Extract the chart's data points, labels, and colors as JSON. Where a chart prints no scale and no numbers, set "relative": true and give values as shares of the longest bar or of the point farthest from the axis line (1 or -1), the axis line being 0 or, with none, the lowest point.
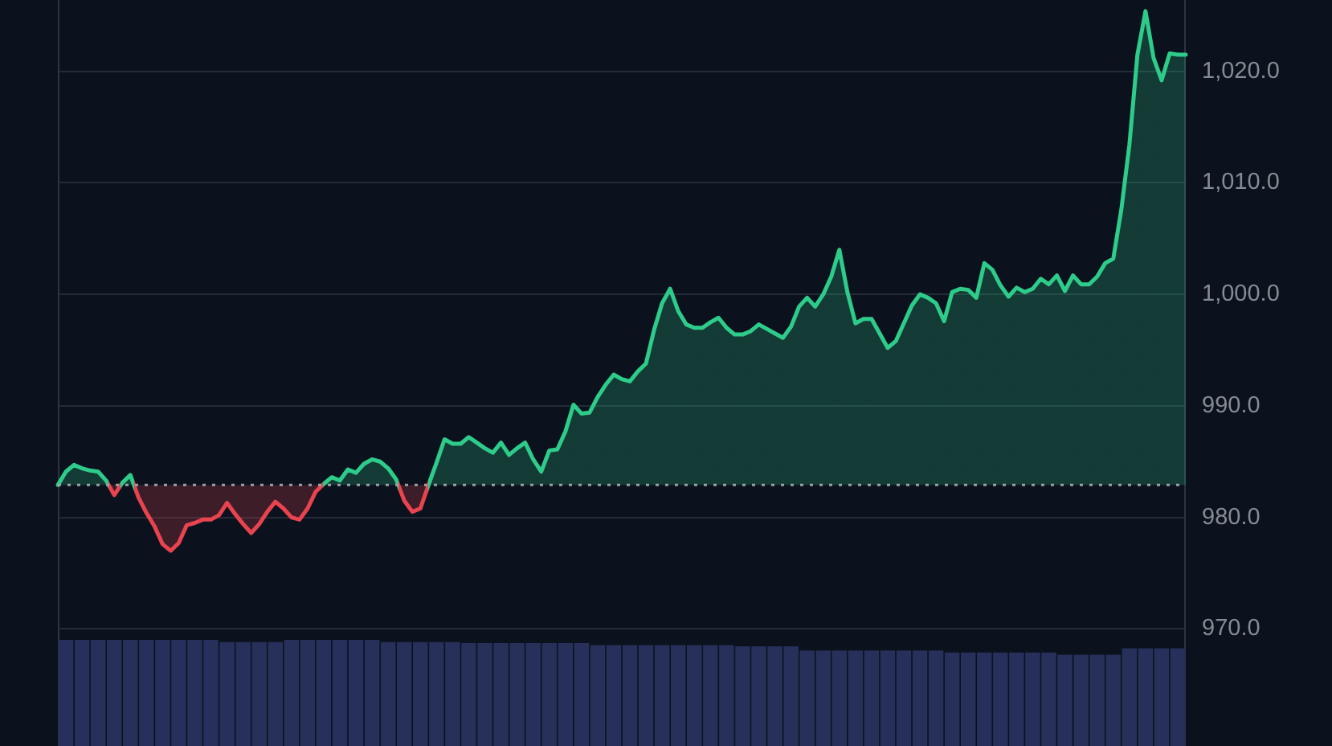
{
  "chart_data": [
    {
      "type": "area",
      "categories": [
        null,
        null,
        null,
        null,
        null,
        null,
        null,
        null,
        null,
        null,
        null,
        null,
        null,
        null,
        null,
        null,
        null,
        null,
        null,
        null,
        null,
        null,
        null,
        null,
        null,
        null,
        null,
        null,
        null,
        null,
        null,
        null,
        null,
        null,
        null,
        null,
        null,
        null,
        null,
        null,
        null,
        null,
        null,
        null,
        null,
        null,
        null,
        null,
        null,
        null,
        null,
        null,
        null,
        null,
        null,
        null,
        null,
        null,
        null,
        null,
        null,
        null,
        null,
        null,
        null,
        null,
        null,
        null,
        null,
        null,
        null,
        null,
        null,
        null,
        null,
        null,
        null,
        null,
        null,
        null,
        null,
        null,
        null,
        null,
        null,
        null,
        null,
        null,
        null,
        null,
        null,
        null,
        null,
        null,
        null,
        null,
        null,
        null,
        null,
        null,
        null,
        null,
        null,
        null,
        null,
        null,
        null,
        null,
        null,
        null,
        null,
        null,
        null,
        null,
        null,
        null,
        null,
        null,
        null,
        null,
        null,
        null,
        null,
        null,
        null,
        null,
        null,
        null,
        null,
        null,
        null,
        null,
        null,
        null,
        null,
        null,
        null,
        null,
        null,
        null,
        null
      ],
      "series": [
        {
          "colors": [
            "#2ecc8a",
            "#2ecc8a",
            "#2ecc8a",
            "#2ecc8a",
            "#2ecc8a",
            "#2ecc8a",
            "#2ecc8a",
            "#e8434f",
            "#2ecc8a",
            "#2ecc8a",
            "#e8434f",
            "#e8434f",
            "#e8434f",
            "#e8434f",
            "#e8434f",
            "#e8434f",
            "#e8434f",
            "#e8434f",
            "#e8434f",
            "#e8434f",
            "#e8434f",
            "#e8434f",
            "#e8434f",
            "#e8434f",
            "#e8434f",
            "#e8434f",
            "#e8434f",
            "#e8434f",
            "#e8434f",
            "#e8434f",
            "#e8434f",
            "#e8434f",
            "#e8434f",
            "#2ecc8a",
            "#2ecc8a",
            "#2ecc8a",
            "#2ecc8a",
            "#2ecc8a",
            "#2ecc8a",
            "#2ecc8a",
            "#2ecc8a",
            "#2ecc8a",
            "#2ecc8a",
            "#e8434f",
            "#e8434f",
            "#e8434f",
            "#2ecc8a",
            "#2ecc8a",
            "#2ecc8a",
            "#2ecc8a",
            "#2ecc8a",
            "#2ecc8a",
            "#2ecc8a",
            "#2ecc8a",
            "#2ecc8a",
            "#2ecc8a",
            "#2ecc8a",
            "#2ecc8a",
            "#2ecc8a",
            "#2ecc8a",
            "#2ecc8a",
            "#2ecc8a",
            "#2ecc8a",
            "#2ecc8a",
            "#2ecc8a",
            "#2ecc8a",
            "#2ecc8a",
            "#2ecc8a",
            "#2ecc8a",
            "#2ecc8a",
            "#2ecc8a",
            "#2ecc8a",
            "#2ecc8a",
            "#2ecc8a",
            "#2ecc8a",
            "#2ecc8a",
            "#2ecc8a",
            "#2ecc8a",
            "#2ecc8a",
            "#2ecc8a",
            "#2ecc8a",
            "#2ecc8a",
            "#2ecc8a",
            "#2ecc8a",
            "#2ecc8a",
            "#2ecc8a",
            "#2ecc8a",
            "#2ecc8a",
            "#2ecc8a",
            "#2ecc8a",
            "#2ecc8a",
            "#2ecc8a",
            "#2ecc8a",
            "#2ecc8a",
            "#2ecc8a",
            "#2ecc8a",
            "#2ecc8a",
            "#2ecc8a",
            "#2ecc8a",
            "#2ecc8a",
            "#2ecc8a",
            "#2ecc8a",
            "#2ecc8a",
            "#2ecc8a",
            "#2ecc8a",
            "#2ecc8a",
            "#2ecc8a",
            "#2ecc8a",
            "#2ecc8a",
            "#2ecc8a",
            "#2ecc8a",
            "#2ecc8a",
            "#2ecc8a",
            "#2ecc8a",
            "#2ecc8a",
            "#2ecc8a",
            "#2ecc8a",
            "#2ecc8a",
            "#2ecc8a",
            "#2ecc8a",
            "#2ecc8a",
            "#2ecc8a",
            "#2ecc8a",
            "#2ecc8a",
            "#2ecc8a",
            "#2ecc8a",
            "#2ecc8a",
            "#2ecc8a",
            "#2ecc8a",
            "#2ecc8a",
            "#2ecc8a",
            "#2ecc8a",
            "#2ecc8a",
            "#2ecc8a",
            "#2ecc8a",
            "#2ecc8a",
            "#2ecc8a",
            "#2ecc8a",
            "#2ecc8a",
            "#2ecc8a",
            "#2ecc8a"
          ],
          "values": [
            982.9,
            984.1,
            984.7,
            984.4,
            984.2,
            984.1,
            983.3,
            982.0,
            983.1,
            983.8,
            981.8,
            980.4,
            979.2,
            977.6,
            977.0,
            977.7,
            979.3,
            979.5,
            979.8,
            979.8,
            980.2,
            981.3,
            980.3,
            979.4,
            978.6,
            979.4,
            980.5,
            981.4,
            980.8,
            980.0,
            979.8,
            980.8,
            982.3,
            983.0,
            983.6,
            983.3,
            984.3,
            984.0,
            984.8,
            985.2,
            985.0,
            984.4,
            983.4,
            981.5,
            980.5,
            980.8,
            982.9,
            984.9,
            987.0,
            986.6,
            986.6,
            987.2,
            986.7,
            986.2,
            985.8,
            986.7,
            985.6,
            986.2,
            986.7,
            985.2,
            984.1,
            986.0,
            986.1,
            987.7,
            990.1,
            989.3,
            989.4,
            990.8,
            991.9,
            992.8,
            992.4,
            992.2,
            993.1,
            993.8,
            996.8,
            999.2,
            1000.5,
            998.5,
            997.3,
            997.0,
            997.0,
            997.5,
            997.9,
            997.0,
            996.4,
            996.4,
            996.7,
            997.3,
            996.9,
            996.5,
            996.1,
            997.1,
            998.9,
            999.7,
            998.9,
            1000.0,
            1001.6,
            1004.0,
            1000.2,
            997.4,
            997.8,
            997.8,
            996.5,
            995.2,
            995.8,
            997.4,
            999.0,
            1000.0,
            999.7,
            999.2,
            997.6,
            1000.2,
            1000.5,
            1000.4,
            999.7,
            1002.8,
            1002.2,
            1000.8,
            999.8,
            1000.6,
            1000.2,
            1000.5,
            1001.4,
            1000.9,
            1001.7,
            1000.3,
            1001.7,
            1000.9,
            1000.9,
            1001.6,
            1002.8,
            1003.2,
            1007.6,
            1013.4,
            1021.5,
            1025.4,
            1021.2,
            1019.2,
            1021.6,
            1021.5,
            1021.5
          ]
        }
      ],
      "ylim": [
        969.3,
        1026.4
      ],
      "yticks": [
        {
          "value": 970,
          "label": "970.0"
        },
        {
          "value": 980,
          "label": "980.0"
        },
        {
          "value": 990,
          "label": "990.0"
        },
        {
          "value": 1000,
          "label": "1,000.0"
        },
        {
          "value": 1010,
          "label": "1,010.0"
        },
        {
          "value": 1020,
          "label": "1,020.0"
        }
      ],
      "grid": "y",
      "marker": "none",
      "line_style": "solid",
      "tick_labels": "y",
      "ref_lines": [
        {
          "axis": "y",
          "value": 982.9,
          "color": "#9aa0a8",
          "line_style": "dotted"
        }
      ]
    },
    {
      "type": "bar",
      "relative": true,
      "categories": [
        null,
        null,
        null,
        null,
        null,
        null,
        null,
        null,
        null,
        null,
        null,
        null,
        null,
        null,
        null,
        null,
        null,
        null,
        null,
        null,
        null,
        null,
        null,
        null,
        null,
        null,
        null,
        null,
        null,
        null,
        null,
        null,
        null,
        null,
        null,
        null,
        null,
        null,
        null,
        null,
        null,
        null,
        null,
        null,
        null,
        null,
        null,
        null,
        null,
        null,
        null,
        null,
        null,
        null,
        null,
        null,
        null,
        null,
        null,
        null,
        null,
        null,
        null,
        null,
        null,
        null,
        null,
        null,
        null,
        null
      ],
      "values": [
        1,
        1,
        1,
        1,
        1,
        1,
        1,
        1,
        1,
        1,
        0.98,
        0.98,
        0.98,
        0.98,
        1,
        1,
        1,
        1,
        1,
        1,
        0.98,
        0.98,
        0.98,
        0.98,
        0.98,
        0.97,
        0.97,
        0.97,
        0.97,
        0.97,
        0.97,
        0.97,
        0.97,
        0.95,
        0.95,
        0.95,
        0.95,
        0.95,
        0.95,
        0.95,
        0.95,
        0.95,
        0.94,
        0.94,
        0.94,
        0.94,
        0.9,
        0.9,
        0.9,
        0.9,
        0.9,
        0.9,
        0.9,
        0.9,
        0.9,
        0.88,
        0.88,
        0.88,
        0.88,
        0.88,
        0.88,
        0.88,
        0.86,
        0.86,
        0.86,
        0.86,
        0.92,
        0.92,
        0.92,
        0.92
      ],
      "color": "#26305a"
    }
  ]
}
